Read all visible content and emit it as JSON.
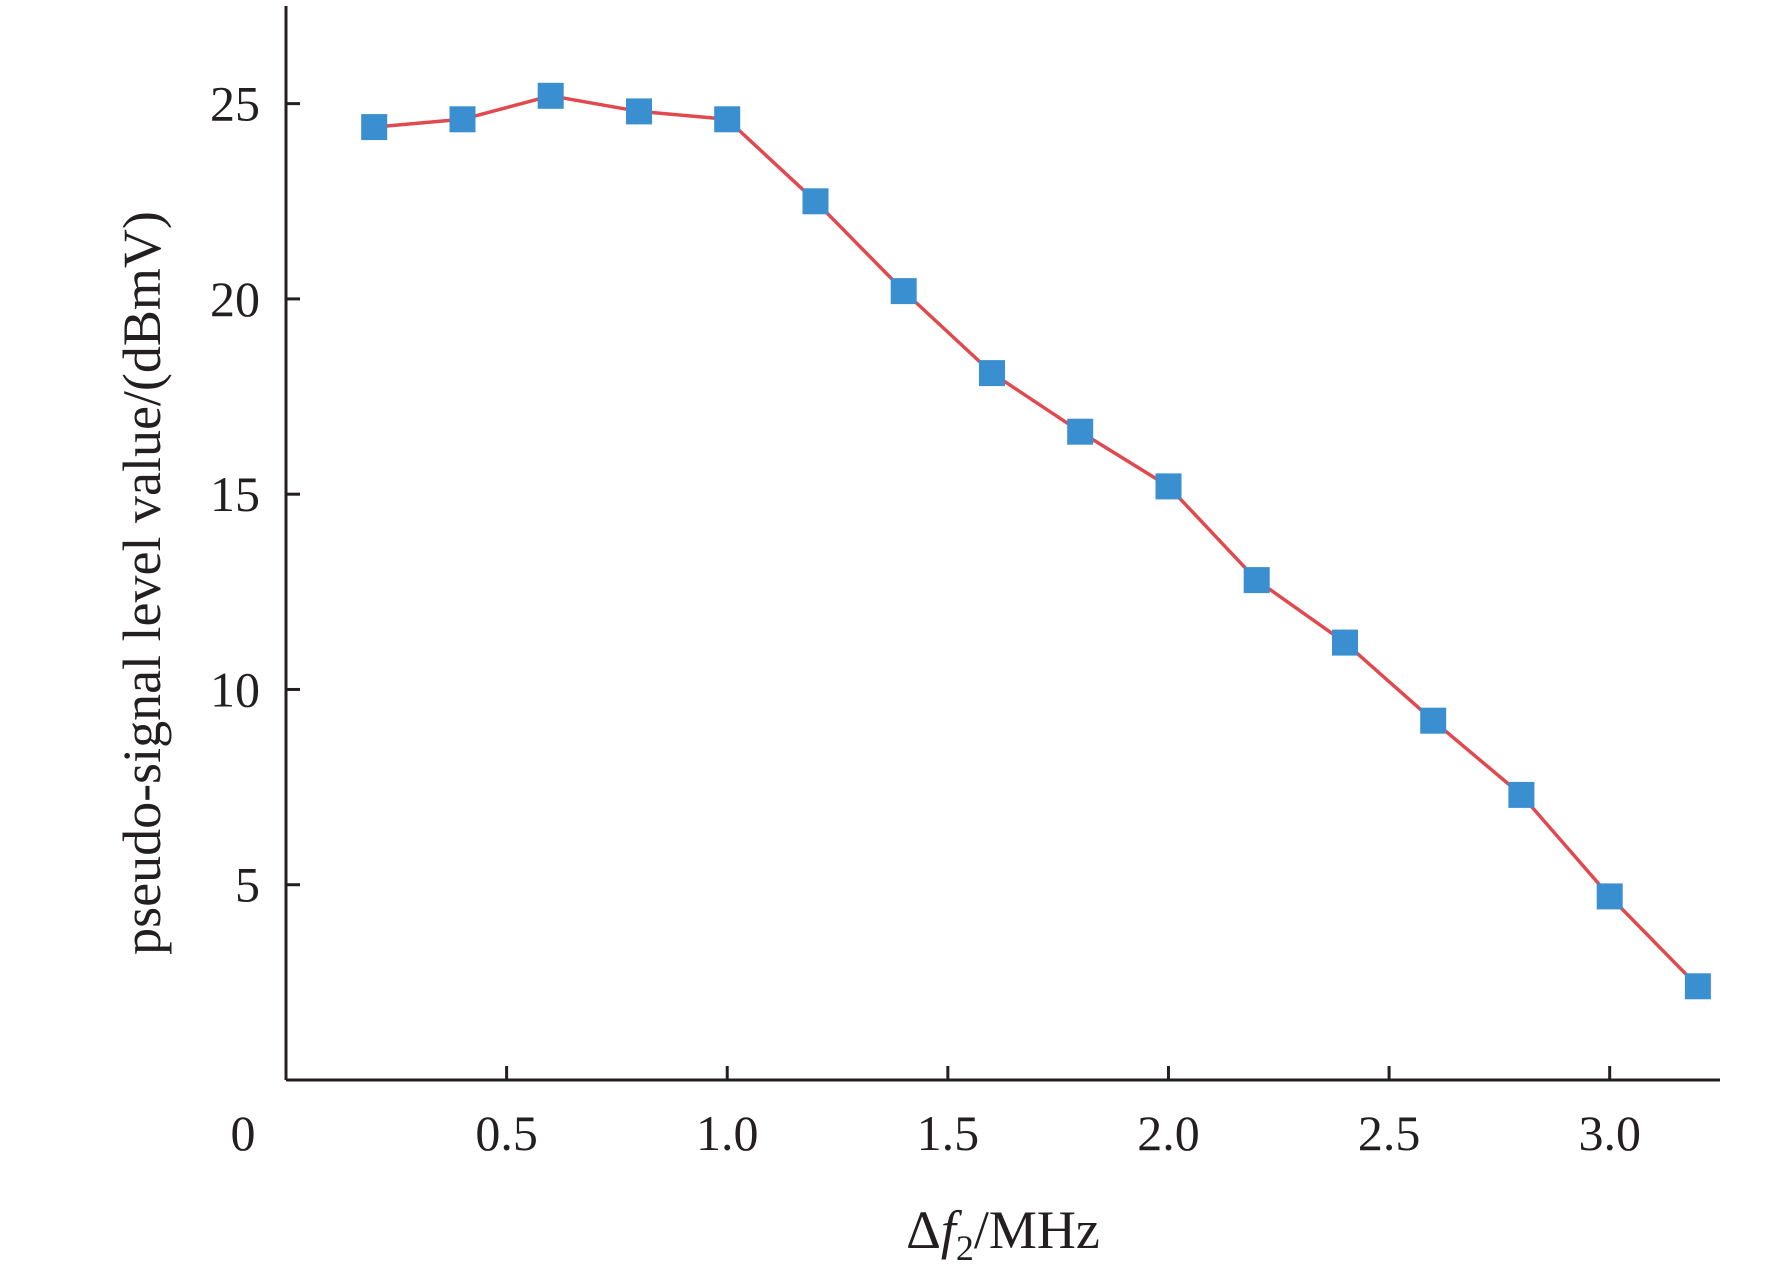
{
  "chart_data": {
    "type": "line",
    "title": "",
    "xlabel": {
      "delta": "Δ",
      "var": "f",
      "sub": "2",
      "unit": "/MHz"
    },
    "ylabel": "pseudo-signal level value/(dBmV)",
    "x_origin_label": "0",
    "xlim": [
      0,
      3.25
    ],
    "ylim": [
      0,
      27.5
    ],
    "xticks": [
      0.5,
      1.0,
      1.5,
      2.0,
      2.5,
      3.0
    ],
    "xtick_labels": [
      "0.5",
      "1.0",
      "1.5",
      "2.0",
      "2.5",
      "3.0"
    ],
    "yticks": [
      5,
      10,
      15,
      20,
      25
    ],
    "ytick_labels": [
      "5",
      "10",
      "15",
      "20",
      "25"
    ],
    "grid": false,
    "legend": "none",
    "series": [
      {
        "line_color": "#e04a4f",
        "marker_color": "#3a8fd1",
        "marker": "square",
        "x": [
          0.2,
          0.4,
          0.6,
          0.8,
          1.0,
          1.2,
          1.4,
          1.6,
          1.8,
          2.0,
          2.2,
          2.4,
          2.6,
          2.8,
          3.0,
          3.2
        ],
        "y": [
          24.4,
          24.6,
          25.2,
          24.8,
          24.6,
          22.5,
          20.2,
          18.1,
          16.6,
          15.2,
          12.8,
          11.2,
          9.2,
          7.3,
          4.7,
          2.4
        ]
      }
    ]
  }
}
